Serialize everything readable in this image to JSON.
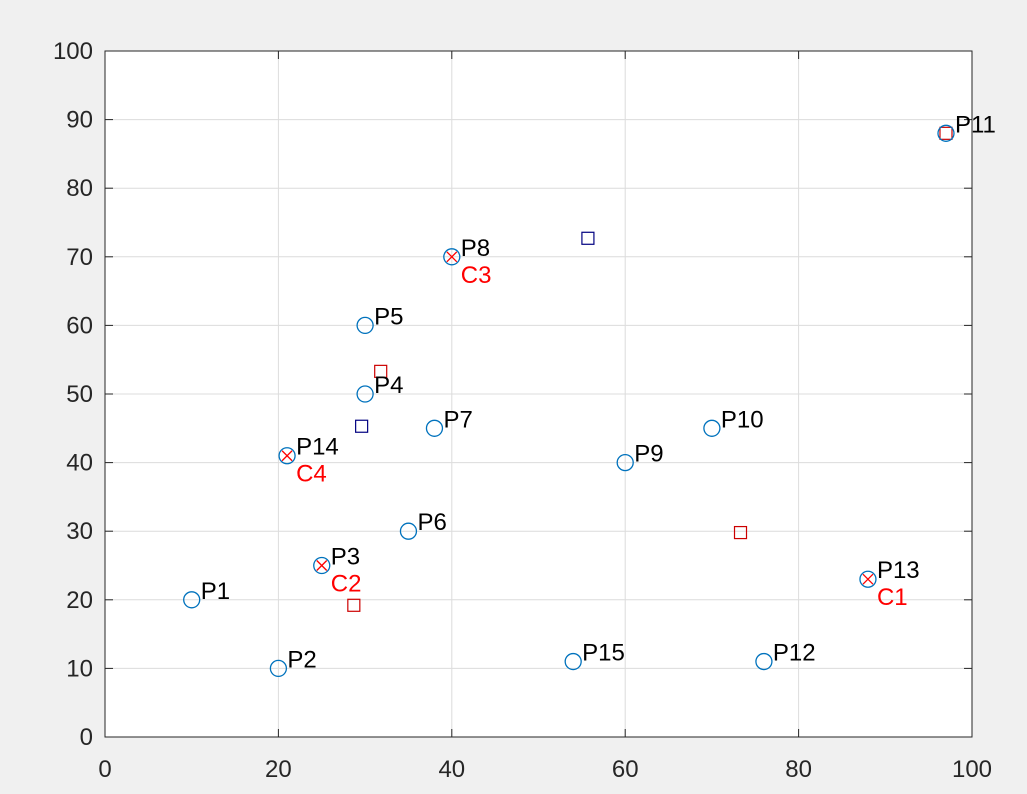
{
  "figure": {
    "background": "#f0f0f0",
    "axes_background": "#ffffff"
  },
  "chart_data": {
    "type": "scatter",
    "xlim": [
      0,
      100
    ],
    "ylim": [
      0,
      100
    ],
    "xticks": [
      0,
      20,
      40,
      60,
      80,
      100
    ],
    "yticks": [
      0,
      10,
      20,
      30,
      40,
      50,
      60,
      70,
      80,
      90,
      100
    ],
    "grid": true,
    "colors": {
      "point": "#0072bd",
      "point_label": "#000000",
      "center_marker": "#ff0000",
      "center_label": "#ff0000",
      "square_red": "#cc0000",
      "square_blue": "#000080"
    },
    "points": [
      {
        "label": "P1",
        "x": 10,
        "y": 20
      },
      {
        "label": "P2",
        "x": 20,
        "y": 10
      },
      {
        "label": "P3",
        "x": 25,
        "y": 25
      },
      {
        "label": "P4",
        "x": 30,
        "y": 50
      },
      {
        "label": "P5",
        "x": 30,
        "y": 60
      },
      {
        "label": "P6",
        "x": 35,
        "y": 30
      },
      {
        "label": "P7",
        "x": 38,
        "y": 45
      },
      {
        "label": "P8",
        "x": 40,
        "y": 70
      },
      {
        "label": "P9",
        "x": 60,
        "y": 40
      },
      {
        "label": "P10",
        "x": 70,
        "y": 45
      },
      {
        "label": "P11",
        "x": 97,
        "y": 88
      },
      {
        "label": "P12",
        "x": 76,
        "y": 11
      },
      {
        "label": "P13",
        "x": 88,
        "y": 23
      },
      {
        "label": "P14",
        "x": 21,
        "y": 41
      },
      {
        "label": "P15",
        "x": 54,
        "y": 11
      }
    ],
    "centers": [
      {
        "label": "C1",
        "x": 88,
        "y": 23
      },
      {
        "label": "C2",
        "x": 25,
        "y": 25
      },
      {
        "label": "C3",
        "x": 40,
        "y": 70
      },
      {
        "label": "C4",
        "x": 21,
        "y": 41
      }
    ],
    "squares": [
      {
        "x": 97,
        "y": 88,
        "color": "red"
      },
      {
        "x": 31.8,
        "y": 53.3,
        "color": "red"
      },
      {
        "x": 28.7,
        "y": 19.2,
        "color": "red"
      },
      {
        "x": 73.3,
        "y": 29.8,
        "color": "red"
      },
      {
        "x": 55.7,
        "y": 72.7,
        "color": "blue"
      },
      {
        "x": 29.6,
        "y": 45.3,
        "color": "blue"
      }
    ]
  }
}
